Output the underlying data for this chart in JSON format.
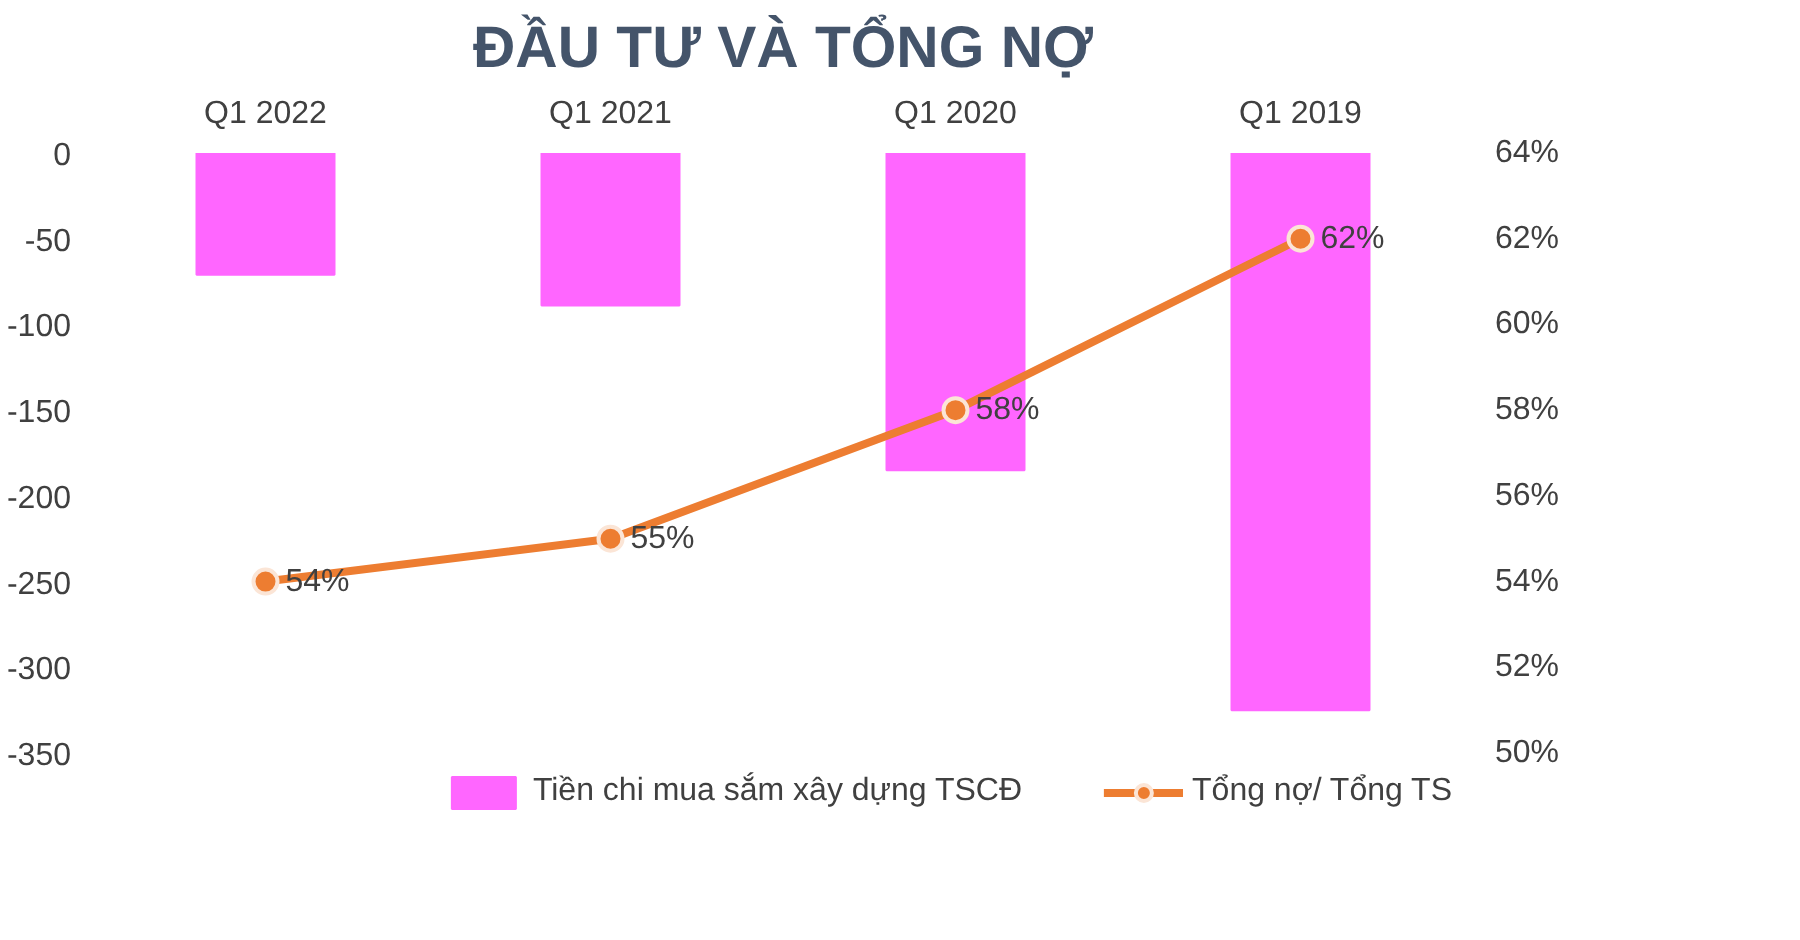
{
  "chart_data": {
    "type": "bar",
    "title": "ĐẦU TƯ VÀ TỔNG NỢ",
    "categories": [
      "Q1 2022",
      "Q1 2021",
      "Q1 2020",
      "Q1 2019"
    ],
    "series": [
      {
        "name": "Tiền chi mua sắm xây dựng TSCĐ",
        "color": "#ff66ff",
        "values": [
          -71,
          -89,
          -185,
          -325
        ]
      },
      {
        "name": "Tổng nợ/ Tổng TS",
        "type": "line",
        "axis": "y2",
        "color": "#ed7d31",
        "values": [
          54,
          55,
          58,
          62
        ],
        "marker": "circle",
        "data_labels": true,
        "value_labels": [
          "54%",
          "55%",
          "58%",
          "62%"
        ]
      }
    ],
    "ylim": [
      -350,
      0
    ],
    "yticks": [
      -350,
      -300,
      -250,
      -200,
      -150,
      -100,
      -50,
      0
    ],
    "y2lim": [
      50,
      64
    ],
    "y2ticks": [
      {
        "value": 50,
        "label": "50%"
      },
      {
        "value": 52,
        "label": "52%"
      },
      {
        "value": 54,
        "label": "54%"
      },
      {
        "value": 56,
        "label": "56%"
      },
      {
        "value": 58,
        "label": "58%"
      },
      {
        "value": 60,
        "label": "60%"
      },
      {
        "value": 62,
        "label": "62%"
      },
      {
        "value": 64,
        "label": "64%"
      }
    ],
    "grid": false,
    "legend": "bottom"
  }
}
